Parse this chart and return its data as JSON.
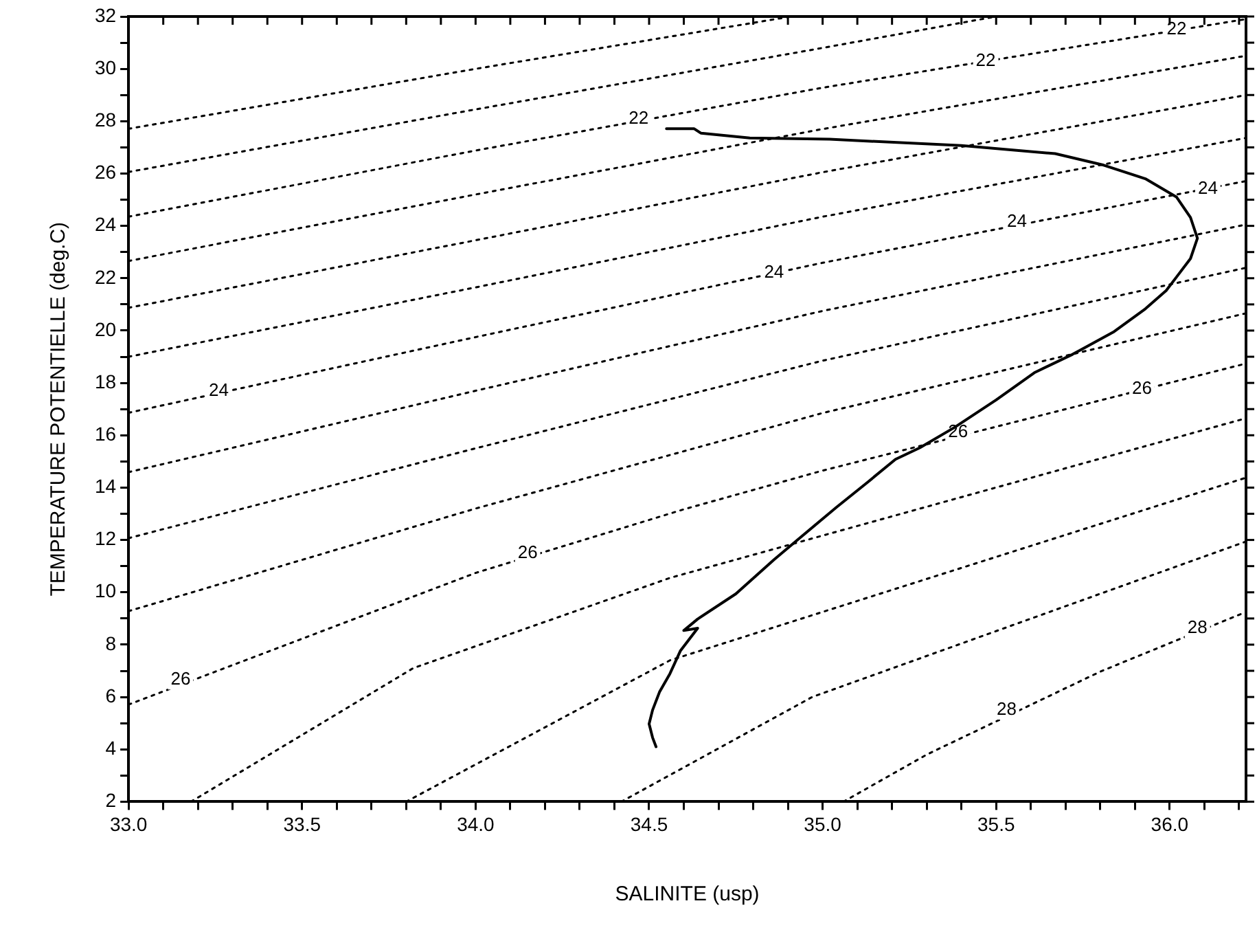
{
  "chart_data": {
    "type": "line",
    "xlabel": "SALINITE (usp)",
    "ylabel": "TEMPERATURE POTENTIELLE (deg.C)",
    "xlim": [
      33.0,
      36.22
    ],
    "ylim": [
      2,
      32
    ],
    "xticks": [
      {
        "value": 33,
        "label": "33.0"
      },
      {
        "value": 33.1,
        "label": null
      },
      {
        "value": 33.2,
        "label": null
      },
      {
        "value": 33.3,
        "label": null
      },
      {
        "value": 33.4,
        "label": null
      },
      {
        "value": 33.5,
        "label": "33.5"
      },
      {
        "value": 33.6,
        "label": null
      },
      {
        "value": 33.7,
        "label": null
      },
      {
        "value": 33.8,
        "label": null
      },
      {
        "value": 33.9,
        "label": null
      },
      {
        "value": 34,
        "label": "34.0"
      },
      {
        "value": 34.1,
        "label": null
      },
      {
        "value": 34.2,
        "label": null
      },
      {
        "value": 34.3,
        "label": null
      },
      {
        "value": 34.4,
        "label": null
      },
      {
        "value": 34.5,
        "label": "34.5"
      },
      {
        "value": 34.6,
        "label": null
      },
      {
        "value": 34.7,
        "label": null
      },
      {
        "value": 34.8,
        "label": null
      },
      {
        "value": 34.9,
        "label": null
      },
      {
        "value": 35,
        "label": "35.0"
      },
      {
        "value": 35.1,
        "label": null
      },
      {
        "value": 35.2,
        "label": null
      },
      {
        "value": 35.3,
        "label": null
      },
      {
        "value": 35.4,
        "label": null
      },
      {
        "value": 35.5,
        "label": "35.5"
      },
      {
        "value": 35.6,
        "label": null
      },
      {
        "value": 35.7,
        "label": null
      },
      {
        "value": 35.8,
        "label": null
      },
      {
        "value": 35.9,
        "label": null
      },
      {
        "value": 36,
        "label": "36.0"
      },
      {
        "value": 36.1,
        "label": null
      },
      {
        "value": 36.2,
        "label": null
      }
    ],
    "yticks": [
      2,
      {
        "value": 3,
        "label": null
      },
      4,
      {
        "value": 5,
        "label": null
      },
      6,
      {
        "value": 7,
        "label": null
      },
      8,
      {
        "value": 9,
        "label": null
      },
      10,
      {
        "value": 11,
        "label": null
      },
      12,
      {
        "value": 13,
        "label": null
      },
      14,
      {
        "value": 15,
        "label": null
      },
      16,
      {
        "value": 17,
        "label": null
      },
      18,
      {
        "value": 19,
        "label": null
      },
      20,
      {
        "value": 21,
        "label": null
      },
      22,
      {
        "value": 23,
        "label": null
      },
      24,
      {
        "value": 25,
        "label": null
      },
      26,
      {
        "value": 27,
        "label": null
      },
      28,
      {
        "value": 29,
        "label": null
      },
      30,
      {
        "value": 31,
        "label": null
      },
      32
    ],
    "grid": false,
    "legend": false,
    "marker": "none",
    "series": [
      {
        "color": "#000000",
        "line_style": "solid",
        "x": [
          34.55,
          34.63,
          34.65,
          34.79,
          35.02,
          35.4,
          35.67,
          35.81,
          35.93,
          36.02,
          36.06,
          36.08,
          36.06,
          36.02,
          35.99,
          35.93,
          35.84,
          35.72,
          35.61,
          35.5,
          35.38,
          35.28,
          35.21,
          35.13,
          35.04,
          34.93,
          34.86,
          34.75,
          34.64,
          34.6,
          34.64,
          34.59,
          34.56,
          34.53,
          34.51,
          34.5,
          34.51,
          34.52
        ],
        "values": [
          27.71,
          27.71,
          27.54,
          27.36,
          27.31,
          27.07,
          26.76,
          26.32,
          25.8,
          25.1,
          24.32,
          23.53,
          22.75,
          22.05,
          21.53,
          20.83,
          19.96,
          19.09,
          18.39,
          17.35,
          16.3,
          15.52,
          15.08,
          14.21,
          13.25,
          12.03,
          11.25,
          9.94,
          8.98,
          8.54,
          8.63,
          7.76,
          6.89,
          6.19,
          5.5,
          4.97,
          4.45,
          4.1
        ]
      },
      {
        "color": "#000000",
        "line_style": "dotted",
        "x": [
          33.0,
          34.0,
          34.91
        ],
        "values": [
          27.71,
          30.0,
          32
        ]
      },
      {
        "color": "#000000",
        "line_style": "dotted",
        "x": [
          33.0,
          34.0,
          35.0,
          35.5
        ],
        "values": [
          26.06,
          28.45,
          30.8,
          32
        ]
      },
      {
        "color": "#000000",
        "line_style": "dotted",
        "x": [
          33.0,
          34.0,
          35.0,
          36.22
        ],
        "values": [
          24.35,
          26.88,
          29.28,
          31.9
        ]
      },
      {
        "color": "#000000",
        "line_style": "dotted",
        "x": [
          33.0,
          34.0,
          35.0,
          36.22
        ],
        "values": [
          22.66,
          25.2,
          27.7,
          30.5
        ]
      },
      {
        "color": "#000000",
        "line_style": "dotted",
        "x": [
          33.0,
          34.0,
          35.0,
          36.22
        ],
        "values": [
          20.87,
          23.45,
          26.05,
          29.0
        ]
      },
      {
        "color": "#000000",
        "line_style": "dotted",
        "x": [
          33.0,
          34.0,
          35.0,
          36.22
        ],
        "values": [
          19.0,
          21.65,
          24.35,
          27.36
        ]
      },
      {
        "color": "#000000",
        "line_style": "dotted",
        "x": [
          33.0,
          34.0,
          35.0,
          36.22
        ],
        "values": [
          16.86,
          19.75,
          22.59,
          25.71
        ]
      },
      {
        "color": "#000000",
        "line_style": "dotted",
        "x": [
          33.0,
          34.0,
          35.0,
          36.22
        ],
        "values": [
          14.59,
          17.7,
          20.75,
          24.05
        ]
      },
      {
        "color": "#000000",
        "line_style": "dotted",
        "x": [
          33.0,
          34.0,
          35.0,
          36.22
        ],
        "values": [
          12.07,
          15.5,
          18.85,
          22.4
        ]
      },
      {
        "color": "#000000",
        "line_style": "dotted",
        "x": [
          33.0,
          34.0,
          35.0,
          36.22
        ],
        "values": [
          9.28,
          13.2,
          16.85,
          20.66
        ]
      },
      {
        "color": "#000000",
        "line_style": "dotted",
        "x": [
          33.0,
          34.0,
          34.6,
          35.0,
          36.22
        ],
        "values": [
          5.71,
          10.74,
          13.17,
          14.65,
          18.74
        ]
      },
      {
        "color": "#000000",
        "line_style": "dotted",
        "x": [
          33.18,
          33.82,
          34.56,
          36.22
        ],
        "values": [
          2,
          7.1,
          10.55,
          16.65
        ]
      },
      {
        "color": "#000000",
        "line_style": "dotted",
        "x": [
          33.8,
          34.56,
          36.22
        ],
        "values": [
          2,
          7.4,
          14.38
        ]
      },
      {
        "color": "#000000",
        "line_style": "dotted",
        "x": [
          34.42,
          34.97,
          36.22
        ],
        "values": [
          2,
          6.0,
          11.94
        ]
      },
      {
        "color": "#000000",
        "line_style": "dotted",
        "x": [
          35.06,
          35.3,
          35.8,
          36.22
        ],
        "values": [
          2,
          3.8,
          6.97,
          9.25
        ]
      }
    ],
    "annotations": [
      {
        "text": "22",
        "x": 34.47,
        "y": 28.1
      },
      {
        "text": "22",
        "x": 35.47,
        "y": 30.3
      },
      {
        "text": "22",
        "x": 36.02,
        "y": 31.5
      },
      {
        "text": "24",
        "x": 33.26,
        "y": 17.68
      },
      {
        "text": "24",
        "x": 34.86,
        "y": 22.2
      },
      {
        "text": "24",
        "x": 35.56,
        "y": 24.16
      },
      {
        "text": "24",
        "x": 36.11,
        "y": 25.4
      },
      {
        "text": "26",
        "x": 33.15,
        "y": 6.65
      },
      {
        "text": "26",
        "x": 34.15,
        "y": 11.5
      },
      {
        "text": "26",
        "x": 35.39,
        "y": 16.11
      },
      {
        "text": "26",
        "x": 35.92,
        "y": 17.78
      },
      {
        "text": "28",
        "x": 35.53,
        "y": 5.5
      },
      {
        "text": "28",
        "x": 36.08,
        "y": 8.63
      }
    ]
  }
}
